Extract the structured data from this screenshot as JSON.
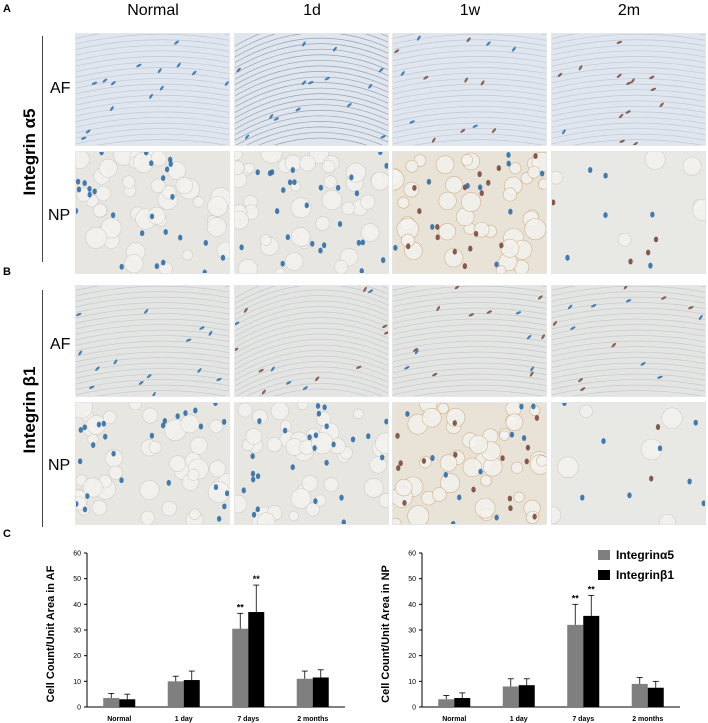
{
  "panels": {
    "a_label": "A",
    "b_label": "B",
    "c_label": "C"
  },
  "columns": [
    "Normal",
    "1d",
    "1w",
    "2m"
  ],
  "groups": [
    {
      "label": "Integrin α5",
      "rows": [
        "AF",
        "NP"
      ]
    },
    {
      "label": "Integrin β1",
      "rows": [
        "AF",
        "NP"
      ]
    }
  ],
  "legend": {
    "items": [
      {
        "label": "Integrinα5",
        "color": "#7f7f7f"
      },
      {
        "label": "Integrinβ1",
        "color": "#000000"
      }
    ]
  },
  "tissue_colors": {
    "af_bg": "#dfe6ef",
    "np_bg": "#e8e6e1",
    "nucleus_blue": "#2f6ea8",
    "nucleus_brown": "#7a4a3c"
  },
  "chart_data": [
    {
      "type": "bar",
      "categories": [
        "Normal",
        "1 day",
        "7 days",
        "2 months"
      ],
      "ylabel": "Cell Count/Unit Area in AF",
      "ylim": [
        0,
        60
      ],
      "yticks": [
        0,
        10,
        20,
        30,
        40,
        50,
        60
      ],
      "series": [
        {
          "name": "Integrinα5",
          "values": [
            3.5,
            10,
            30.5,
            11
          ],
          "errors": [
            1.8,
            2,
            6,
            3
          ]
        },
        {
          "name": "Integrinβ1",
          "values": [
            3,
            10.5,
            37,
            11.5
          ],
          "errors": [
            2,
            3.5,
            10.5,
            3
          ]
        }
      ],
      "annotations": [
        {
          "category": "7 days",
          "series": "Integrinα5",
          "text": "**"
        },
        {
          "category": "7 days",
          "series": "Integrinβ1",
          "text": "**"
        }
      ],
      "grid": false
    },
    {
      "type": "bar",
      "categories": [
        "Normal",
        "1 day",
        "7 days",
        "2 months"
      ],
      "ylabel": "Cell Count/Unit Area in NP",
      "ylim": [
        0,
        60
      ],
      "yticks": [
        0,
        10,
        20,
        30,
        40,
        50,
        60
      ],
      "series": [
        {
          "name": "Integrinα5",
          "values": [
            3,
            8,
            32,
            9
          ],
          "errors": [
            1.5,
            3,
            8,
            2.5
          ]
        },
        {
          "name": "Integrinβ1",
          "values": [
            3.5,
            8.5,
            35.5,
            7.5
          ],
          "errors": [
            2,
            2.5,
            8,
            2.5
          ]
        }
      ],
      "annotations": [
        {
          "category": "7 days",
          "series": "Integrinα5",
          "text": "**"
        },
        {
          "category": "7 days",
          "series": "Integrinβ1",
          "text": "**"
        }
      ],
      "grid": false
    }
  ]
}
